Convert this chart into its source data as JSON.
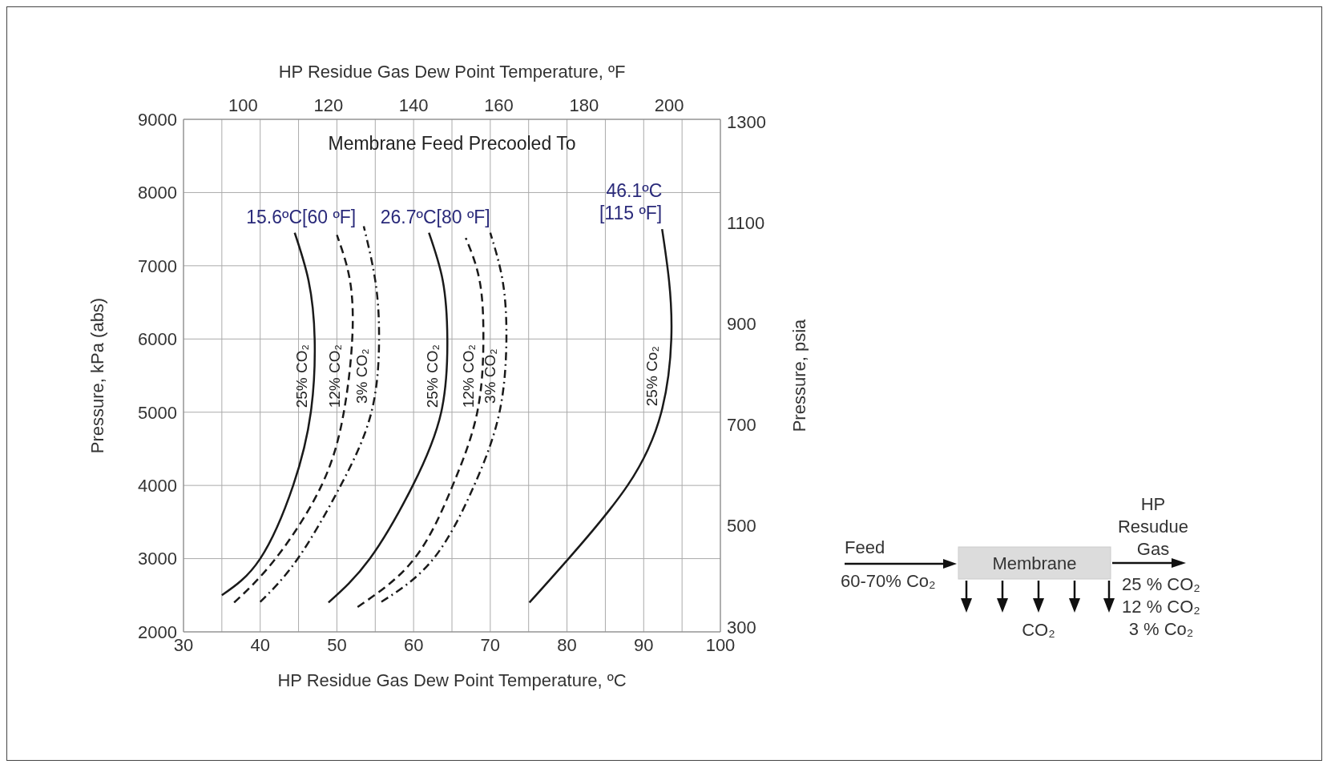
{
  "chart_data": {
    "type": "line",
    "xlabel": "HP Residue Gas Dew Point Temperature, ºC",
    "x2label": "HP Residue Gas Dew Point Temperature, ºF",
    "ylabel": "Pressure, kPa (abs)",
    "y2label": "Pressure, psia",
    "xlim": [
      30,
      100
    ],
    "xticks": [
      30,
      {
        "value": 35,
        "label": null
      },
      40,
      {
        "value": 45,
        "label": null
      },
      50,
      {
        "value": 55,
        "label": null
      },
      60,
      {
        "value": 65,
        "label": null
      },
      70,
      {
        "value": 75,
        "label": null
      },
      80,
      {
        "value": 85,
        "label": null
      },
      90,
      {
        "value": 95,
        "label": null
      },
      100
    ],
    "x2lim": [
      86,
      212
    ],
    "x2ticks": [
      100,
      120,
      140,
      160,
      180,
      200
    ],
    "ylim": [
      2000,
      9000
    ],
    "yticks": [
      2000,
      3000,
      4000,
      5000,
      6000,
      7000,
      8000,
      9000
    ],
    "y2lim": [
      290,
      1305
    ],
    "y2ticks": [
      300,
      500,
      700,
      900,
      1100,
      1300
    ],
    "grid": true,
    "legend": false,
    "marker": "none",
    "series": [
      {
        "name": "25% CO₂",
        "color": "#1a1a1a",
        "line_style": "solid",
        "x": [
          35,
          40,
          44.3,
          46.6,
          47.1,
          46.3,
          44.5
        ],
        "values": [
          2500,
          3000,
          4000,
          5000,
          6000,
          6800,
          7450
        ]
      },
      {
        "name": "12% CO₂",
        "color": "#1a1a1a",
        "line_style": "dashed",
        "x": [
          36.6,
          42,
          48,
          50.9,
          52,
          51.7,
          50
        ],
        "values": [
          2400,
          3000,
          4000,
          5000,
          6000,
          6800,
          7420
        ]
      },
      {
        "name": "3% CO₂",
        "color": "#1a1a1a",
        "line_style": "dashdot",
        "x": [
          40,
          44.9,
          50.5,
          54.5,
          55.5,
          55,
          53.5
        ],
        "values": [
          2410,
          3000,
          4000,
          5000,
          6000,
          6800,
          7540
        ]
      },
      {
        "name": "25% CO₂",
        "color": "#1a1a1a",
        "line_style": "solid",
        "x": [
          48.9,
          54.3,
          59.9,
          63.6,
          64.4,
          63.8,
          62
        ],
        "values": [
          2400,
          3000,
          4000,
          5000,
          6000,
          6800,
          7450
        ]
      },
      {
        "name": "12% CO₂",
        "color": "#1a1a1a",
        "line_style": "dashed",
        "x": [
          52.7,
          60.1,
          65.1,
          68.3,
          69.1,
          68.6,
          66.8
        ],
        "values": [
          2340,
          3000,
          4000,
          5000,
          6000,
          6800,
          7380
        ]
      },
      {
        "name": "3% CO₂",
        "color": "#1a1a1a",
        "line_style": "dashdot",
        "x": [
          55.8,
          62.6,
          67.9,
          71.2,
          72.1,
          71.6,
          70
        ],
        "values": [
          2410,
          3000,
          4000,
          5000,
          6000,
          6800,
          7450
        ]
      },
      {
        "name": "25% Co₂",
        "color": "#1a1a1a",
        "line_style": "solid",
        "x": [
          75.1,
          80.2,
          87.9,
          92.3,
          93.6,
          93.3,
          92.4
        ],
        "values": [
          2400,
          3000,
          4000,
          5000,
          6000,
          6800,
          7500
        ]
      }
    ],
    "annotations": [
      "Membrane Feed Precooled To",
      "15.6ºC[60 ºF]",
      "26.7ºC[80 ºF]",
      "46.1ºC\n[115 ºF]",
      "Feed",
      "60-70% Co₂",
      "Membrane",
      "CO₂",
      "HP Resudue Gas",
      "25 % CO₂",
      "12 % CO₂",
      "3 % Co₂"
    ]
  }
}
